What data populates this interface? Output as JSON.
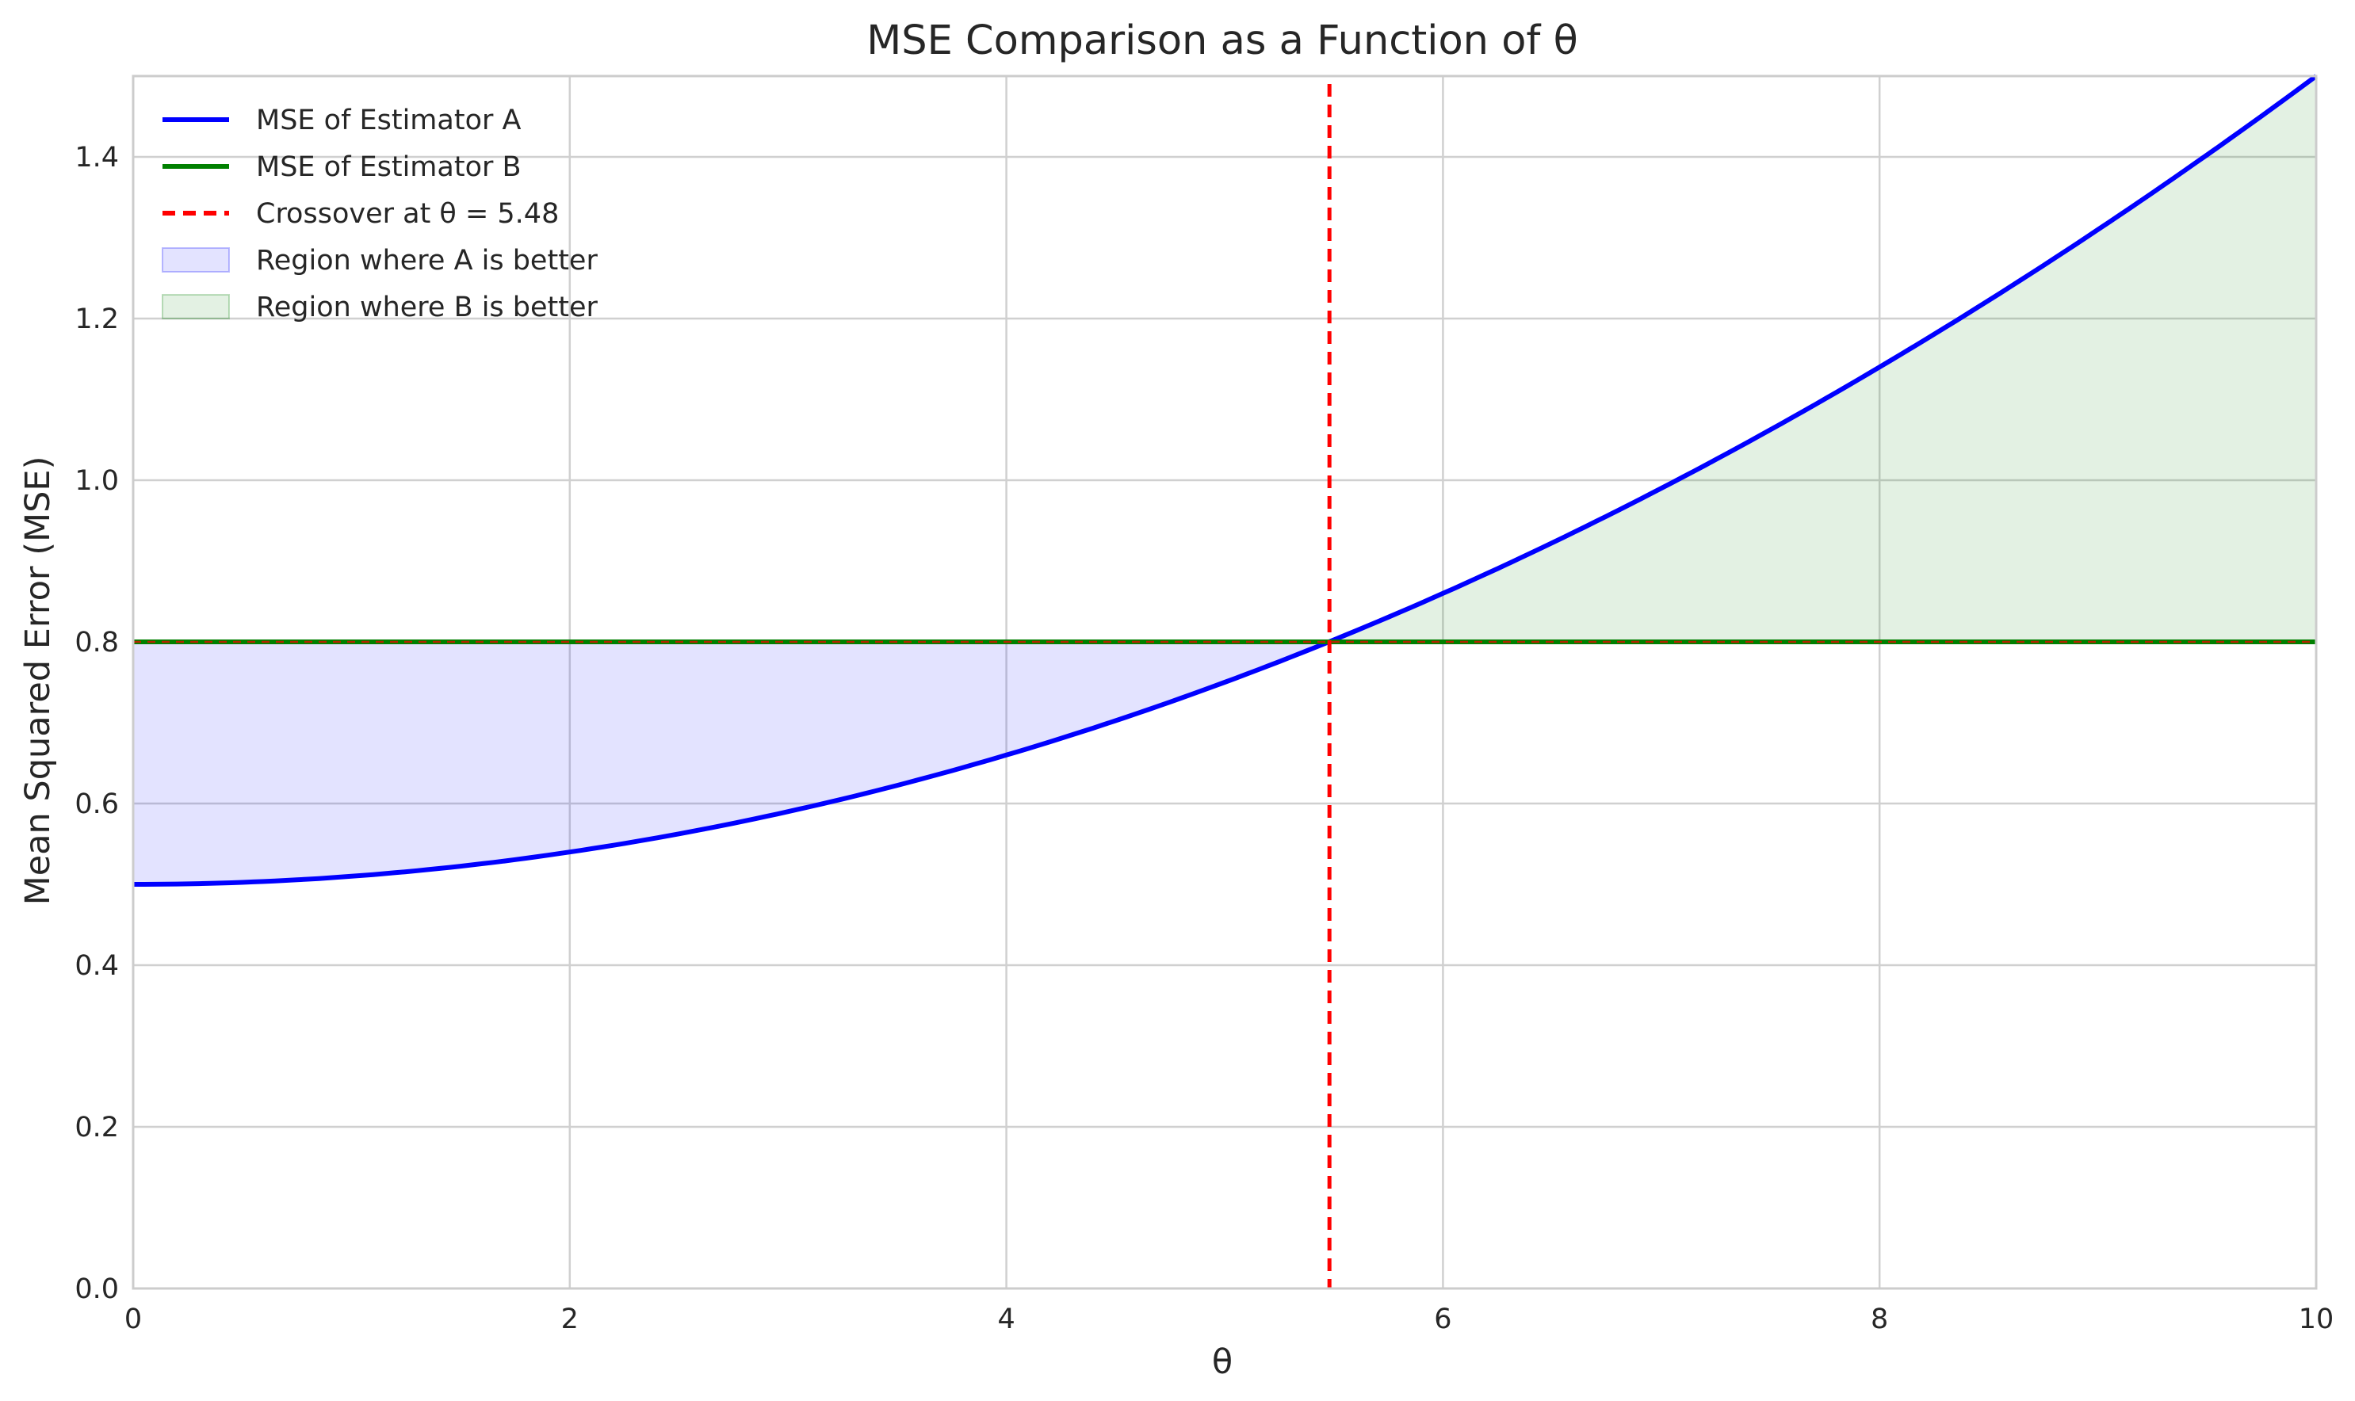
{
  "chart_data": {
    "type": "line",
    "title": "MSE Comparison as a Function of θ",
    "xlabel": "θ",
    "ylabel": "Mean Squared Error (MSE)",
    "xlim": [
      0,
      10
    ],
    "ylim": [
      0,
      1.5
    ],
    "x_ticks": [
      "0",
      "2",
      "4",
      "6",
      "8",
      "10"
    ],
    "y_ticks": [
      "0.0",
      "0.2",
      "0.4",
      "0.6",
      "0.8",
      "1.0",
      "1.2",
      "1.4"
    ],
    "grid": true,
    "legend_position": "top-left",
    "series": [
      {
        "name": "MSE of Estimator A",
        "style": "solid",
        "color": "#0000ff",
        "x": [
          0,
          1,
          2,
          3,
          4,
          5,
          5.48,
          6,
          7,
          8,
          9,
          10
        ],
        "y": [
          0.5,
          0.51,
          0.54,
          0.59,
          0.66,
          0.75,
          0.8,
          0.86,
          0.99,
          1.14,
          1.31,
          1.5
        ]
      },
      {
        "name": "MSE of Estimator B",
        "style": "solid",
        "color": "#008000",
        "x": [
          0,
          10
        ],
        "y": [
          0.8,
          0.8
        ]
      }
    ],
    "vertical_line": {
      "name": "Crossover at θ = 5.48",
      "x": 5.48,
      "style": "dashed",
      "color": "#ff0000"
    },
    "regions": [
      {
        "name": "Region where A is better",
        "x_range": [
          0,
          5.48
        ],
        "color": "#0000ff",
        "opacity": 0.11
      },
      {
        "name": "Region where B is better",
        "x_range": [
          5.48,
          10
        ],
        "color": "#008000",
        "opacity": 0.11
      }
    ],
    "colors": {
      "estimator_a": "#0000ff",
      "estimator_b": "#008000",
      "crossover": "#ff0000",
      "grid": "#d0d0d0"
    }
  }
}
